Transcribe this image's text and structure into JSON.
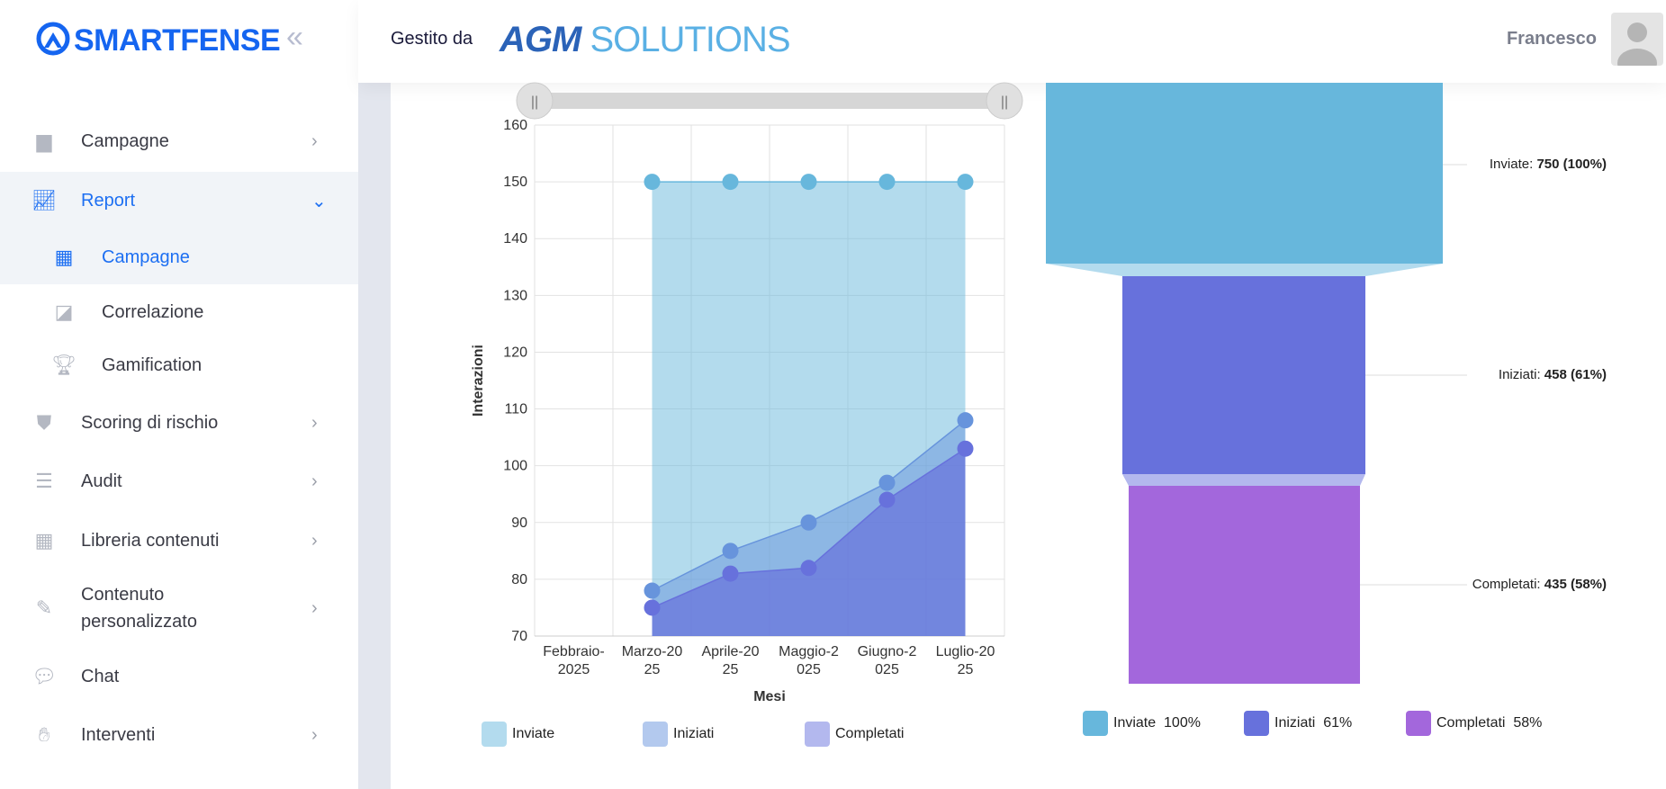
{
  "brand": {
    "name": "SMARTFENSE",
    "collapse_icon": "double-chevron-left"
  },
  "header": {
    "managed_by": "Gestito da",
    "partner_logo": "AGM SOLUTIONS",
    "user_name": "Francesco"
  },
  "sidebar": {
    "items": [
      {
        "label": "Campagne",
        "icon": "calendar",
        "chevron": "›"
      },
      {
        "label": "Report",
        "icon": "chart-line",
        "chevron": "⌄"
      },
      {
        "label": "Campagne",
        "icon": "calendar-grid"
      },
      {
        "label": "Correlazione",
        "icon": "presentation"
      },
      {
        "label": "Gamification",
        "icon": "trophy"
      },
      {
        "label": "Scoring di rischio",
        "icon": "shield",
        "chevron": "›"
      },
      {
        "label": "Audit",
        "icon": "list",
        "chevron": "›"
      },
      {
        "label": "Libreria contenuti",
        "icon": "grid",
        "chevron": "›"
      },
      {
        "label": "Contenuto personalizzato",
        "line1": "Contenuto",
        "line2": "personalizzato",
        "icon": "edit",
        "chevron": "›"
      },
      {
        "label": "Chat",
        "icon": "chat"
      },
      {
        "label": "Interventi",
        "icon": "hand",
        "chevron": "›"
      }
    ]
  },
  "colors": {
    "inviate": "#67b7dc",
    "iniziati": "#6794dc",
    "completati": "#6771dc",
    "funnel_completati": "#a367dc",
    "brand": "#1565f0"
  },
  "chart_data": [
    {
      "type": "area",
      "xlabel": "Mesi",
      "ylabel": "Interazioni",
      "ylim": [
        70,
        160
      ],
      "yticks": [
        70,
        80,
        90,
        100,
        110,
        120,
        130,
        140,
        150,
        160
      ],
      "categories": [
        "Febbraio-2025",
        "Marzo-2025",
        "Aprile-2025",
        "Maggio-2025",
        "Giugno-2025",
        "Luglio-2025"
      ],
      "category_lines": [
        [
          "Febbraio-",
          "2025"
        ],
        [
          "Marzo-20",
          "25"
        ],
        [
          "Aprile-20",
          "25"
        ],
        [
          "Maggio-2",
          "025"
        ],
        [
          "Giugno-2",
          "025"
        ],
        [
          "Luglio-20",
          "25"
        ]
      ],
      "series": [
        {
          "name": "Inviate",
          "values": [
            null,
            150,
            150,
            150,
            150,
            150
          ]
        },
        {
          "name": "Iniziati",
          "values": [
            null,
            78,
            85,
            90,
            97,
            108
          ]
        },
        {
          "name": "Completati",
          "values": [
            null,
            75,
            81,
            82,
            94,
            103
          ]
        }
      ],
      "legend": "bottom",
      "scrollbar": true
    },
    {
      "type": "funnel",
      "stages": [
        {
          "name": "Inviate",
          "value": 750,
          "percent": 100,
          "label_name": "Inviate:",
          "label_value": "750 (100%)",
          "legend_pct": "100%"
        },
        {
          "name": "Iniziati",
          "value": 458,
          "percent": 61,
          "label_name": "Iniziati:",
          "label_value": "458 (61%)",
          "legend_pct": "61%"
        },
        {
          "name": "Completati",
          "value": 435,
          "percent": 58,
          "label_name": "Completati:",
          "label_value": "435 (58%)",
          "legend_pct": "58%"
        }
      ],
      "legend": "bottom"
    }
  ]
}
